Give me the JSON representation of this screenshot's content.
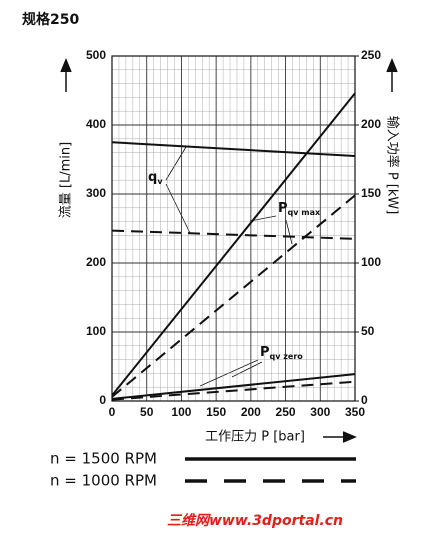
{
  "chart_data": {
    "type": "line",
    "title": "规格250",
    "y_label": "流量 [L/min]",
    "y2_label": "输入功率 P [kW]",
    "x_label": "工作压力 P [bar]",
    "x": [
      0,
      350
    ],
    "xlim": [
      0,
      350
    ],
    "xticks": [
      0,
      50,
      100,
      150,
      200,
      250,
      300,
      350
    ],
    "ylim": [
      0,
      500
    ],
    "yticks": [
      0,
      100,
      200,
      300,
      400,
      500
    ],
    "y2lim": [
      0,
      250
    ],
    "y2ticks": [
      0,
      50,
      100,
      150,
      200,
      250
    ],
    "grid": true,
    "color": "#111111",
    "series": [
      {
        "name": "n = 1500 RPM",
        "dash": false,
        "axis": "y",
        "values": [
          375,
          355
        ]
      },
      {
        "name": "n = 1000 RPM",
        "dash": true,
        "axis": "y",
        "values": [
          247,
          235
        ]
      },
      {
        "name": "n = 1500 RPM",
        "dash": false,
        "axis": "y2",
        "values": [
          4,
          223
        ]
      },
      {
        "name": "n = 1000 RPM",
        "dash": true,
        "axis": "y2",
        "values": [
          3,
          149
        ]
      },
      {
        "name": "n = 1500 RPM",
        "dash": false,
        "axis": "y2",
        "values": [
          1.5,
          19.5
        ]
      },
      {
        "name": "n = 1000 RPM",
        "dash": true,
        "axis": "y2",
        "values": [
          1,
          14
        ]
      }
    ],
    "annotations": [
      {
        "text": "q",
        "sub": "v"
      },
      {
        "text": "P",
        "sub": "qv max"
      },
      {
        "text": "P",
        "sub": "qv zero"
      }
    ],
    "watermark": "三维网www.3dportal.cn"
  }
}
